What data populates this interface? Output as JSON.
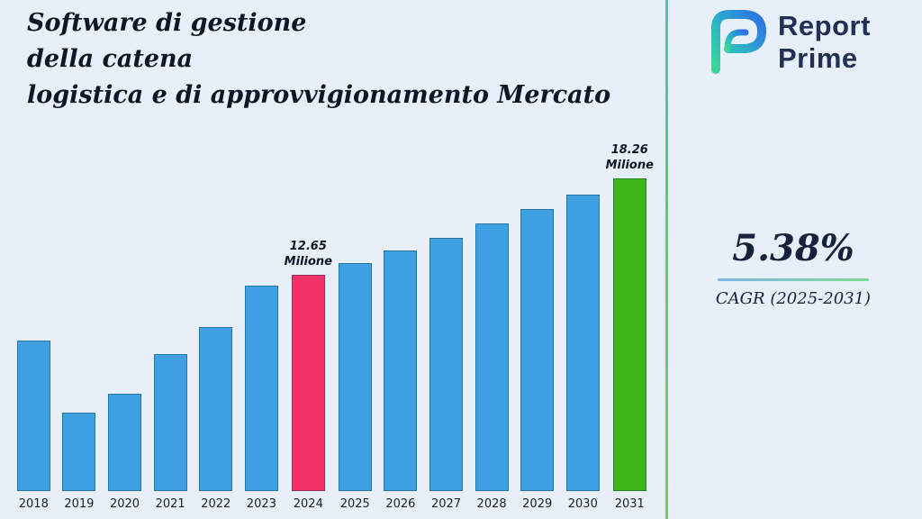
{
  "title": {
    "lines": [
      "Software di gestione",
      "della catena",
      "logistica e di approvvigionamento Mercato"
    ]
  },
  "logo": {
    "line1": "Report",
    "line2": "Prime"
  },
  "cagr": {
    "value": "5.38%",
    "label": "CAGR (2025-2031)"
  },
  "colors": {
    "background": "#E7F0F9",
    "bar_default": "#3FA0E3",
    "bar_highlight_2024": "#F2336B",
    "bar_highlight_2031": "#3EB617",
    "divider_top": "#43C9B0",
    "divider_bottom": "#6ED14E",
    "text_dark": "#0E1726",
    "navy": "#232F55"
  },
  "chart_data": {
    "type": "bar",
    "title": "Software di gestione della catena logistica e di approvvigionamento Mercato",
    "xlabel": "",
    "ylabel": "",
    "unit": "Milione",
    "ylim": [
      0,
      19
    ],
    "grid": false,
    "legend": "none",
    "categories": [
      "2018",
      "2019",
      "2020",
      "2021",
      "2022",
      "2023",
      "2024",
      "2025",
      "2026",
      "2027",
      "2028",
      "2029",
      "2030",
      "2031"
    ],
    "values": [
      8.8,
      4.6,
      5.7,
      8.0,
      9.6,
      12.0,
      12.65,
      13.34,
      14.06,
      14.81,
      15.61,
      16.45,
      17.33,
      18.26
    ],
    "bar_colors": [
      "#3FA0E3",
      "#3FA0E3",
      "#3FA0E3",
      "#3FA0E3",
      "#3FA0E3",
      "#3FA0E3",
      "#F2336B",
      "#3FA0E3",
      "#3FA0E3",
      "#3FA0E3",
      "#3FA0E3",
      "#3FA0E3",
      "#3FA0E3",
      "#3EB617"
    ],
    "annotations": [
      {
        "index": 6,
        "lines": [
          "12.65",
          "Milione"
        ]
      },
      {
        "index": 13,
        "lines": [
          "18.26",
          "Milione"
        ]
      }
    ]
  }
}
